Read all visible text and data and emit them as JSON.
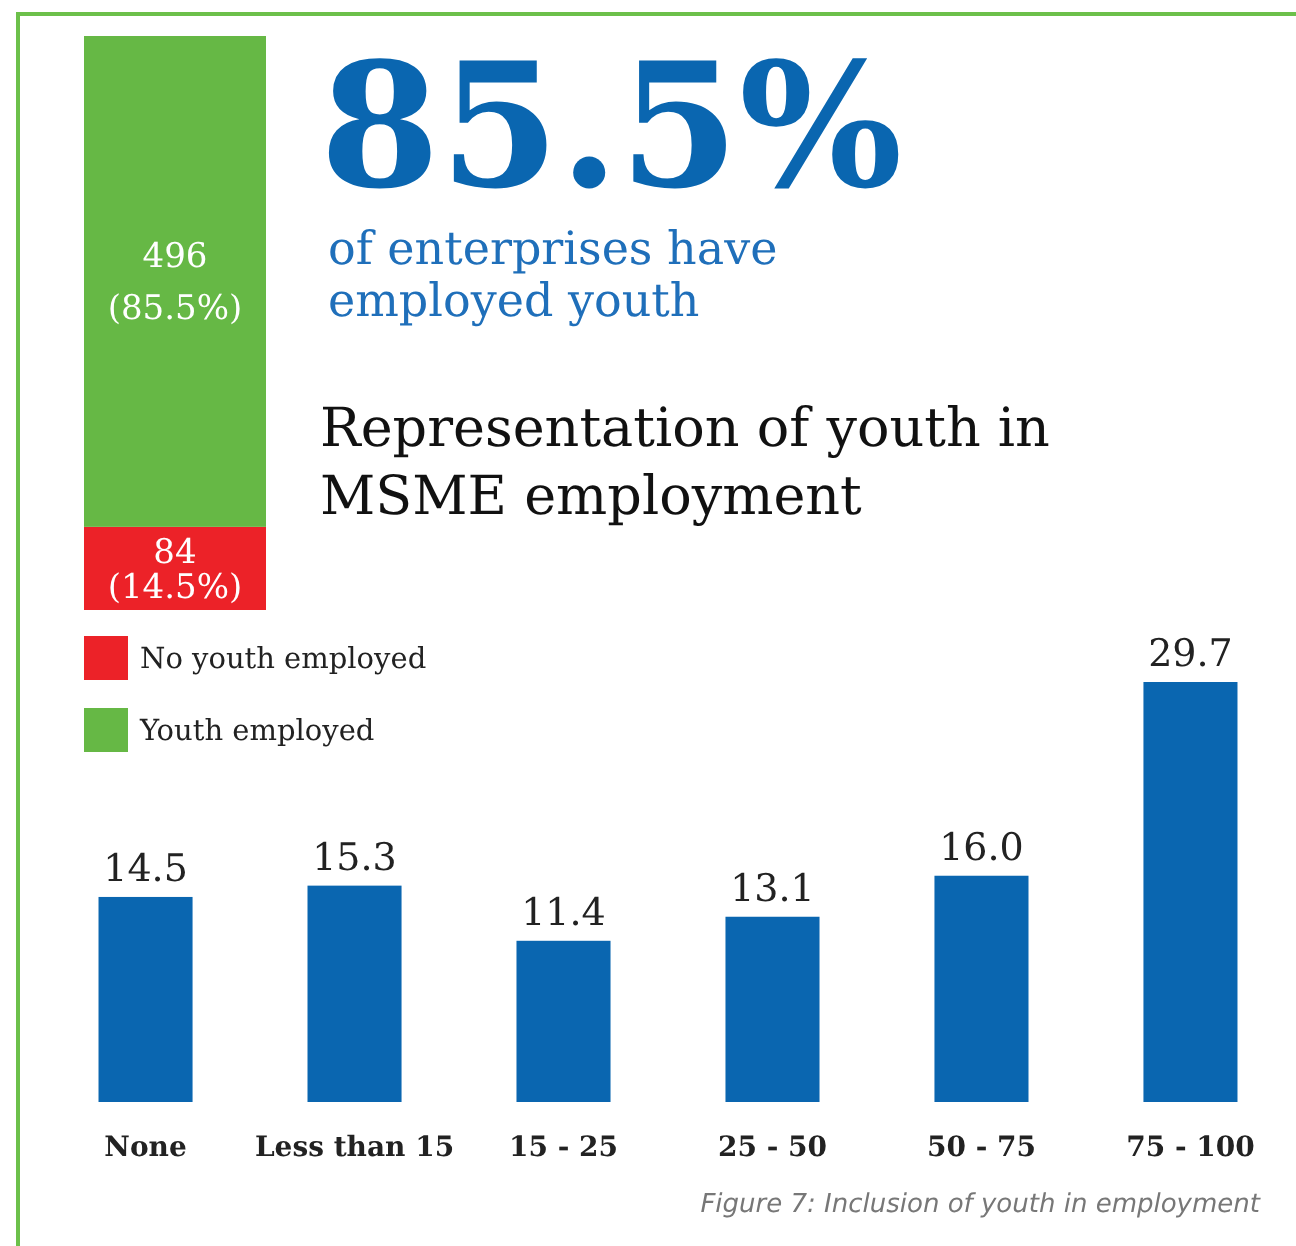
{
  "chart_data": [
    {
      "type": "bar",
      "annotations": [
        "85.5%",
        "of enterprises have employed youth"
      ],
      "stacked": true,
      "categories": [
        null
      ],
      "legend": "bottom",
      "series": [
        {
          "name": "No youth employed",
          "color": "#ec2228",
          "values": [
            84
          ],
          "value_labels": [
            "84 (14.5%)"
          ]
        },
        {
          "name": "Youth employed",
          "color": "#66b845",
          "values": [
            496
          ],
          "value_labels": [
            "496 (85.5%)"
          ]
        }
      ]
    },
    {
      "type": "bar",
      "title": "Representation of youth in MSME employment",
      "categories": [
        "None",
        "Less than 15",
        "15 - 25",
        "25 - 50",
        "50 - 75",
        "75 - 100"
      ],
      "values": [
        14.5,
        15.3,
        11.4,
        13.1,
        16.0,
        29.7
      ],
      "value_labels": [
        "14.5",
        "15.3",
        "11.4",
        "13.1",
        "16.0",
        "29.7"
      ],
      "color": "#0a66b0",
      "annotations": [
        "Figure 7: Inclusion of youth in employment"
      ]
    }
  ]
}
